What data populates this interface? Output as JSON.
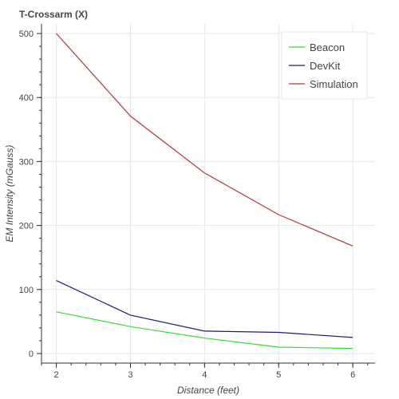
{
  "chart_data": {
    "type": "line",
    "title": "T-Crossarm (X)",
    "xlabel": "Distance (feet)",
    "ylabel": "EM Intensity (mGauss)",
    "x": [
      2,
      3,
      4,
      5,
      6
    ],
    "xlim": [
      1.8,
      6.3
    ],
    "ylim": [
      -15,
      515
    ],
    "x_ticks": [
      2,
      3,
      4,
      5,
      6
    ],
    "y_ticks": [
      0,
      100,
      200,
      300,
      400,
      500
    ],
    "grid": true,
    "legend_position": "top-right",
    "series": [
      {
        "name": "Beacon",
        "color": "#33dd33",
        "values": [
          65,
          42,
          24,
          10,
          8
        ]
      },
      {
        "name": "DevKit",
        "color": "#1a1a7a",
        "values": [
          114,
          60,
          35,
          33,
          25
        ]
      },
      {
        "name": "Simulation",
        "color": "#b03a3a",
        "values": [
          500,
          371,
          282,
          217,
          168
        ]
      }
    ]
  }
}
